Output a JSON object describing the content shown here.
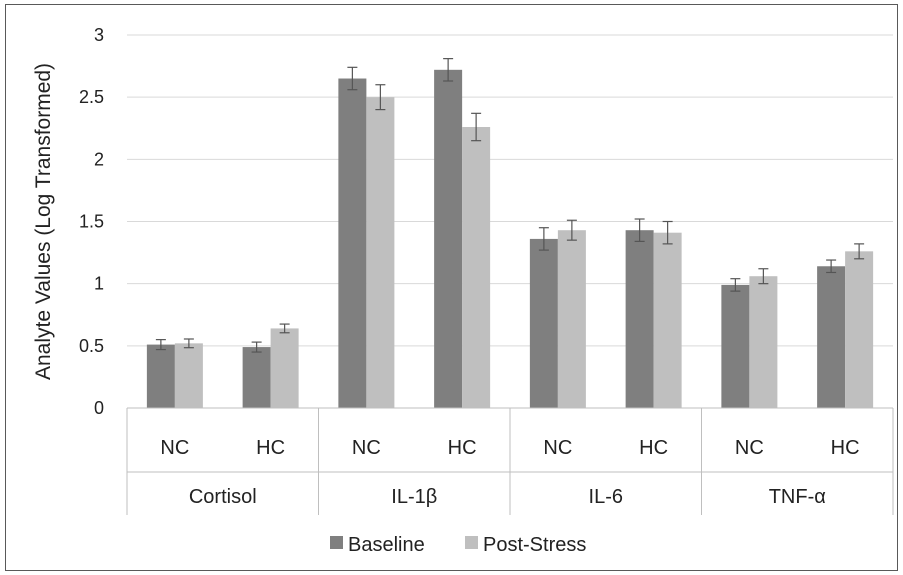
{
  "chart_data": {
    "type": "bar",
    "ylabel": "Analyte Values (Log Transformed)",
    "ylim": [
      0,
      3
    ],
    "yticks": [
      "0",
      "0.5",
      "1",
      "1.5",
      "2",
      "2.5",
      "3"
    ],
    "yticks_values": [
      0,
      0.5,
      1,
      1.5,
      2,
      2.5,
      3
    ],
    "grid": true,
    "legend_position": "bottom",
    "groups": [
      {
        "name": "Cortisol",
        "categories": [
          "NC",
          "HC"
        ]
      },
      {
        "name": "IL-1β",
        "categories": [
          "NC",
          "HC"
        ]
      },
      {
        "name": "IL-6",
        "categories": [
          "NC",
          "HC"
        ]
      },
      {
        "name": "TNF-α",
        "categories": [
          "NC",
          "HC"
        ]
      }
    ],
    "categories": [
      "Cortisol NC",
      "Cortisol HC",
      "IL-1β NC",
      "IL-1β HC",
      "IL-6 NC",
      "IL-6 HC",
      "TNF-α NC",
      "TNF-α HC"
    ],
    "series": [
      {
        "name": "Baseline",
        "color": "#7f7f7f",
        "values": [
          0.51,
          0.49,
          2.65,
          2.72,
          1.36,
          1.43,
          0.99,
          1.14
        ],
        "errors": [
          0.04,
          0.04,
          0.09,
          0.09,
          0.09,
          0.09,
          0.05,
          0.05
        ]
      },
      {
        "name": "Post-Stress",
        "color": "#bfbfbf",
        "values": [
          0.52,
          0.64,
          2.5,
          2.26,
          1.43,
          1.41,
          1.06,
          1.26
        ],
        "errors": [
          0.035,
          0.035,
          0.1,
          0.11,
          0.08,
          0.09,
          0.06,
          0.06
        ]
      }
    ]
  }
}
